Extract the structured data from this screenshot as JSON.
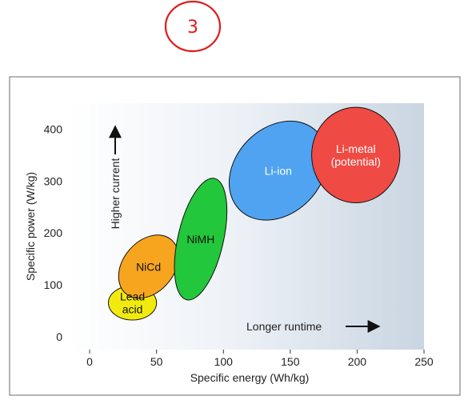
{
  "annotation_mark": "3",
  "chart_data": {
    "type": "scatter",
    "title": "",
    "xlabel": "Specific energy (Wh/kg)",
    "ylabel": "Specific power (W/kg)",
    "xlim": [
      -15,
      250
    ],
    "ylim": [
      -25,
      450
    ],
    "x_ticks": [
      0,
      50,
      100,
      150,
      200,
      250
    ],
    "y_ticks": [
      0,
      100,
      200,
      300,
      400
    ],
    "grid": false,
    "regions": [
      {
        "label": [
          "Lead",
          "acid"
        ],
        "cx": 32,
        "cy": 65,
        "rx": 18,
        "ry": 33,
        "angle": 0,
        "color": "#f2ea0e"
      },
      {
        "label": [
          "NiCd"
        ],
        "cx": 44,
        "cy": 135,
        "rx": 19,
        "ry": 68,
        "angle": 40,
        "color": "#f7a41e"
      },
      {
        "label": [
          "NiMH"
        ],
        "cx": 83,
        "cy": 188,
        "rx": 17,
        "ry": 120,
        "angle": 13,
        "color": "#22c73b"
      },
      {
        "label": [
          "Li-ion"
        ],
        "cx": 141,
        "cy": 320,
        "rx": 32,
        "ry": 106,
        "angle": 44,
        "color": "#4fa3f0"
      },
      {
        "label": [
          "Li-metal",
          "(potential)"
        ],
        "cx": 199,
        "cy": 350,
        "rx": 33,
        "ry": 92,
        "angle": 0,
        "color": "#ef4a43"
      }
    ],
    "annotations": {
      "y_arrow": "Higher current",
      "x_arrow": "Longer runtime"
    }
  }
}
